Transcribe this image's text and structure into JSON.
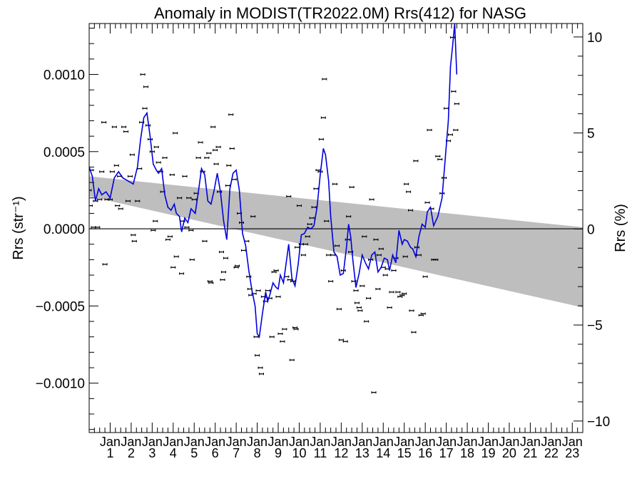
{
  "chart_data": {
    "type": "scatter",
    "title": "Anomaly in MODIST(TR2022.0M) Rrs(412) for NASG",
    "ylabel_left": "Rrs (str⁻¹)",
    "ylabel_right": "Rrs (%)",
    "xlim": [
      0,
      23.5
    ],
    "ylim": [
      -0.00132,
      0.00133
    ],
    "ylim_right": [
      -10.6,
      10.7
    ],
    "y_ticks": [
      {
        "v": 0.001,
        "label": "0.0010"
      },
      {
        "v": 0.0005,
        "label": "0.0005"
      },
      {
        "v": 0.0,
        "label": "0.0000"
      },
      {
        "v": -0.0005,
        "label": "−0.0005"
      },
      {
        "v": -0.001,
        "label": "−0.0010"
      }
    ],
    "y_ticks_right": [
      {
        "v": 10,
        "label": "10"
      },
      {
        "v": 5,
        "label": "5"
      },
      {
        "v": 0,
        "label": "0"
      },
      {
        "v": -5,
        "label": "−5"
      },
      {
        "v": -10,
        "label": "−10"
      }
    ],
    "x_ticks": [
      {
        "x": 1,
        "top": "Jan",
        "bottom": "1"
      },
      {
        "x": 2,
        "top": "Jan",
        "bottom": "2"
      },
      {
        "x": 3,
        "top": "Jan",
        "bottom": "3"
      },
      {
        "x": 4,
        "top": "Jan",
        "bottom": "4"
      },
      {
        "x": 5,
        "top": "Jan",
        "bottom": "5"
      },
      {
        "x": 6,
        "top": "Jan",
        "bottom": "6"
      },
      {
        "x": 7,
        "top": "Jan",
        "bottom": "7"
      },
      {
        "x": 8,
        "top": "Jan",
        "bottom": "8"
      },
      {
        "x": 9,
        "top": "Jan",
        "bottom": "9"
      },
      {
        "x": 10,
        "top": "Jan",
        "bottom": "10"
      },
      {
        "x": 11,
        "top": "Jan",
        "bottom": "11"
      },
      {
        "x": 12,
        "top": "Jan",
        "bottom": "12"
      },
      {
        "x": 13,
        "top": "Jan",
        "bottom": "13"
      },
      {
        "x": 14,
        "top": "Jan",
        "bottom": "14"
      },
      {
        "x": 15,
        "top": "Jan",
        "bottom": "15"
      },
      {
        "x": 16,
        "top": "Jan",
        "bottom": "16"
      },
      {
        "x": 17,
        "top": "Jan",
        "bottom": "17"
      },
      {
        "x": 18,
        "top": "Jan",
        "bottom": "18"
      },
      {
        "x": 19,
        "top": "Jan",
        "bottom": "19"
      },
      {
        "x": 20,
        "top": "Jan",
        "bottom": "20"
      },
      {
        "x": 21,
        "top": "Jan",
        "bottom": "21"
      },
      {
        "x": 22,
        "top": "Jan",
        "bottom": "22"
      },
      {
        "x": 23,
        "top": "Jan",
        "bottom": "23"
      }
    ],
    "uncertainty_band": {
      "color": "#bebebe",
      "upper": [
        [
          0,
          0.00034
        ],
        [
          23.5,
          1e-05
        ]
      ],
      "lower": [
        [
          0,
          0.00021
        ],
        [
          23.5,
          -0.00051
        ]
      ]
    },
    "zero_line": 0,
    "colors": {
      "points": "#000000",
      "smooth_line": "#0000dd",
      "band": "#bebebe"
    },
    "points": [
      [
        0.0,
        0.00025
      ],
      [
        0.05,
        0.00015
      ],
      [
        0.1,
        0.00038
      ],
      [
        0.2,
        1e-05
      ],
      [
        0.3,
        0.00018
      ],
      [
        0.4,
        1e-05
      ],
      [
        0.5,
        0.00019
      ],
      [
        0.6,
        0.00037
      ],
      [
        0.7,
        0.00069
      ],
      [
        0.75,
        -0.00023
      ],
      [
        0.85,
        0.00019
      ],
      [
        1.0,
        0.00019
      ],
      [
        1.1,
        0.00037
      ],
      [
        1.2,
        0.00066
      ],
      [
        1.3,
        0.00041
      ],
      [
        1.35,
        0.00015
      ],
      [
        1.45,
        0.00034
      ],
      [
        1.5,
        0.00013
      ],
      [
        1.65,
        0.00066
      ],
      [
        1.75,
        0.00063
      ],
      [
        1.85,
        0.00018
      ],
      [
        1.95,
        0.00034
      ],
      [
        2.05,
        0.00048
      ],
      [
        2.1,
        -4e-05
      ],
      [
        2.15,
        -8e-05
      ],
      [
        2.3,
        0.00018
      ],
      [
        2.4,
        0.00039
      ],
      [
        2.5,
        0.00069
      ],
      [
        2.55,
        0.001
      ],
      [
        2.65,
        0.00078
      ],
      [
        2.7,
        0.00092
      ],
      [
        2.8,
        0.00067
      ],
      [
        2.9,
        0.00058
      ],
      [
        3.0,
        0.0005
      ],
      [
        3.05,
        -1e-05
      ],
      [
        3.15,
        5e-05
      ],
      [
        3.2,
        0.00053
      ],
      [
        3.3,
        0.00043
      ],
      [
        3.4,
        0.00037
      ],
      [
        3.5,
        0.00024
      ],
      [
        3.6,
        0.00046
      ],
      [
        3.75,
        -7e-05
      ],
      [
        3.85,
        -5e-05
      ],
      [
        3.95,
        0.00035
      ],
      [
        4.0,
        -0.00025
      ],
      [
        4.1,
        0.00062
      ],
      [
        4.15,
        -0.00018
      ],
      [
        4.3,
        0.0002
      ],
      [
        4.4,
        -0.00029
      ],
      [
        4.45,
        5e-05
      ],
      [
        4.55,
        0.00034
      ],
      [
        4.65,
        1e-05
      ],
      [
        4.75,
        0.0002
      ],
      [
        4.85,
        -1e-05
      ],
      [
        4.9,
        -0.0002
      ],
      [
        5.0,
        0.00019
      ],
      [
        5.1,
        0.00023
      ],
      [
        5.2,
        0.00046
      ],
      [
        5.3,
        0.00056
      ],
      [
        5.4,
        0.00037
      ],
      [
        5.5,
        -8e-05
      ],
      [
        5.6,
        0.00046
      ],
      [
        5.7,
        0.00049
      ],
      [
        5.75,
        -0.00034
      ],
      [
        5.8,
        -0.00035
      ],
      [
        5.9,
        0.00066
      ],
      [
        6.0,
        0.00051
      ],
      [
        6.05,
        0.00042
      ],
      [
        6.15,
        0.00053
      ],
      [
        6.2,
        0.00024
      ],
      [
        6.3,
        -0.00015
      ],
      [
        6.35,
        -0.00033
      ],
      [
        6.4,
        -0.00028
      ],
      [
        6.5,
        -0.00019
      ],
      [
        6.6,
        0.00028
      ],
      [
        6.65,
        0.00041
      ],
      [
        6.75,
        0.00074
      ],
      [
        6.8,
        0.00052
      ],
      [
        6.9,
        0.00032
      ],
      [
        7.0,
        -0.00025
      ],
      [
        7.05,
        -0.00024
      ],
      [
        7.15,
        0.0001
      ],
      [
        7.25,
        4e-05
      ],
      [
        7.35,
        -0.00014
      ],
      [
        7.5,
        -8e-05
      ],
      [
        7.6,
        -0.00031
      ],
      [
        7.65,
        -0.00039
      ],
      [
        7.7,
        -0.00043
      ],
      [
        7.8,
        8e-05
      ],
      [
        7.85,
        -0.00042
      ],
      [
        7.95,
        -0.0007
      ],
      [
        8.0,
        -0.00082
      ],
      [
        8.05,
        -0.0004
      ],
      [
        8.15,
        -0.0009
      ],
      [
        8.2,
        -0.00094
      ],
      [
        8.3,
        -0.00044
      ],
      [
        8.4,
        -0.00047
      ],
      [
        8.5,
        -0.0004
      ],
      [
        8.6,
        -0.00045
      ],
      [
        8.7,
        -0.0007
      ],
      [
        8.8,
        -0.00028
      ],
      [
        8.9,
        -0.00027
      ],
      [
        9.0,
        -0.00044
      ],
      [
        9.1,
        -0.00068
      ],
      [
        9.2,
        -0.00073
      ],
      [
        9.3,
        -0.00065
      ],
      [
        9.4,
        -0.00031
      ],
      [
        9.5,
        0.00021
      ],
      [
        9.55,
        -0.00033
      ],
      [
        9.65,
        -0.00085
      ],
      [
        9.7,
        -0.00034
      ],
      [
        9.8,
        -0.00064
      ],
      [
        9.85,
        -0.00065
      ],
      [
        9.9,
        -0.00012
      ],
      [
        10.0,
        0.00015
      ],
      [
        10.1,
        -0.0001
      ],
      [
        10.2,
        -0.00017
      ],
      [
        10.3,
        -0.0001
      ],
      [
        10.4,
        -5e-05
      ],
      [
        10.5,
        3e-05
      ],
      [
        10.6,
        7e-05
      ],
      [
        10.7,
        0.00014
      ],
      [
        10.8,
        0.00026
      ],
      [
        10.9,
        0.00038
      ],
      [
        11.0,
        0.00037
      ],
      [
        11.05,
        0.00058
      ],
      [
        11.15,
        0.00072
      ],
      [
        11.2,
        0.00097
      ],
      [
        11.3,
        5e-05
      ],
      [
        11.4,
        -0.00017
      ],
      [
        11.5,
        -0.00034
      ],
      [
        11.6,
        -0.00017
      ],
      [
        11.7,
        0.00029
      ],
      [
        11.8,
        -0.00011
      ],
      [
        11.9,
        -0.00052
      ],
      [
        12.0,
        -0.00072
      ],
      [
        12.1,
        -0.00027
      ],
      [
        12.2,
        -0.00073
      ],
      [
        12.3,
        -7e-05
      ],
      [
        12.35,
        8e-05
      ],
      [
        12.45,
        -0.00015
      ],
      [
        12.5,
        0.00027
      ],
      [
        12.6,
        -0.00034
      ],
      [
        12.7,
        -0.0004
      ],
      [
        12.75,
        -0.00048
      ],
      [
        12.85,
        -0.00051
      ],
      [
        12.9,
        -0.00053
      ],
      [
        13.0,
        -0.00037
      ],
      [
        13.1,
        -5e-05
      ],
      [
        13.2,
        -0.0006
      ],
      [
        13.3,
        -0.00045
      ],
      [
        13.4,
        -0.0002
      ],
      [
        13.45,
        0.00019
      ],
      [
        13.55,
        -0.00106
      ],
      [
        13.65,
        -7e-05
      ],
      [
        13.75,
        -0.00039
      ],
      [
        13.8,
        -0.00017
      ],
      [
        13.9,
        -0.00013
      ],
      [
        14.0,
        -0.00025
      ],
      [
        14.1,
        -0.0003
      ],
      [
        14.2,
        -0.00026
      ],
      [
        14.3,
        -0.00051
      ],
      [
        14.4,
        -0.00041
      ],
      [
        14.5,
        -0.00027
      ],
      [
        14.6,
        -0.00019
      ],
      [
        14.7,
        -0.00041
      ],
      [
        14.8,
        -0.00044
      ],
      [
        14.9,
        -0.00043
      ],
      [
        15.0,
        -0.00042
      ],
      [
        15.05,
        -0.00018
      ],
      [
        15.1,
        0.00029
      ],
      [
        15.2,
        0.00024
      ],
      [
        15.3,
        0.00012
      ],
      [
        15.35,
        -0.00053
      ],
      [
        15.45,
        -0.00067
      ],
      [
        15.55,
        0.00044
      ],
      [
        15.6,
        -0.00012
      ],
      [
        15.7,
        -0.00017
      ],
      [
        15.8,
        -0.00056
      ],
      [
        15.9,
        -0.00055
      ],
      [
        16.0,
        -0.00031
      ],
      [
        16.1,
        0.00017
      ],
      [
        16.2,
        0.00064
      ],
      [
        16.3,
        0.00013
      ],
      [
        16.4,
        -0.0002
      ],
      [
        16.5,
        -0.0002
      ],
      [
        16.6,
        0.00047
      ],
      [
        16.7,
        0.00045
      ],
      [
        16.8,
        0.00023
      ],
      [
        16.9,
        0.00033
      ],
      [
        17.0,
        0.00078
      ],
      [
        17.1,
        0.00057
      ],
      [
        17.2,
        0.00061
      ],
      [
        17.3,
        0.00124
      ],
      [
        17.35,
        0.00089
      ],
      [
        17.45,
        0.00064
      ],
      [
        17.5,
        0.00081
      ]
    ],
    "smooth_line": [
      [
        0.0,
        0.0004
      ],
      [
        0.15,
        0.00034
      ],
      [
        0.3,
        0.00018
      ],
      [
        0.45,
        0.00026
      ],
      [
        0.6,
        0.00022
      ],
      [
        0.8,
        0.00024
      ],
      [
        1.0,
        0.0002
      ],
      [
        1.2,
        0.00033
      ],
      [
        1.4,
        0.00037
      ],
      [
        1.6,
        0.00033
      ],
      [
        1.85,
        0.00031
      ],
      [
        2.1,
        0.00029
      ],
      [
        2.3,
        0.0004
      ],
      [
        2.45,
        0.00058
      ],
      [
        2.6,
        0.00072
      ],
      [
        2.75,
        0.00075
      ],
      [
        2.9,
        0.0006
      ],
      [
        3.05,
        0.00042
      ],
      [
        3.2,
        0.00038
      ],
      [
        3.3,
        0.00036
      ],
      [
        3.45,
        0.00039
      ],
      [
        3.6,
        0.00022
      ],
      [
        3.75,
        0.00014
      ],
      [
        3.9,
        0.00012
      ],
      [
        4.05,
        0.00016
      ],
      [
        4.15,
        0.0001
      ],
      [
        4.3,
        8e-05
      ],
      [
        4.4,
        -2e-05
      ],
      [
        4.55,
        7e-05
      ],
      [
        4.7,
        4e-05
      ],
      [
        4.85,
        0.00013
      ],
      [
        5.05,
        0.0001
      ],
      [
        5.2,
        0.00024
      ],
      [
        5.35,
        0.00039
      ],
      [
        5.5,
        0.00035
      ],
      [
        5.65,
        0.00018
      ],
      [
        5.8,
        0.00016
      ],
      [
        5.95,
        0.00025
      ],
      [
        6.1,
        0.00036
      ],
      [
        6.25,
        0.00024
      ],
      [
        6.4,
        5e-05
      ],
      [
        6.55,
        -7e-05
      ],
      [
        6.7,
        0.00026
      ],
      [
        6.85,
        0.00036
      ],
      [
        7.0,
        0.00038
      ],
      [
        7.15,
        0.00025
      ],
      [
        7.3,
        -3e-05
      ],
      [
        7.45,
        -0.00011
      ],
      [
        7.6,
        -0.00027
      ],
      [
        7.75,
        -0.0004
      ],
      [
        7.9,
        -0.0005
      ],
      [
        8.0,
        -0.00068
      ],
      [
        8.1,
        -0.0007
      ],
      [
        8.25,
        -0.00055
      ],
      [
        8.4,
        -0.00041
      ],
      [
        8.5,
        -0.00047
      ],
      [
        8.6,
        -0.00043
      ],
      [
        8.75,
        -0.00035
      ],
      [
        8.9,
        -0.00038
      ],
      [
        9.0,
        -0.00039
      ],
      [
        9.1,
        -0.0003
      ],
      [
        9.25,
        -0.00035
      ],
      [
        9.4,
        -0.0002
      ],
      [
        9.5,
        -0.0001
      ],
      [
        9.65,
        -0.00032
      ],
      [
        9.8,
        -0.00037
      ],
      [
        9.95,
        -0.00023
      ],
      [
        10.1,
        -4e-05
      ],
      [
        10.25,
        -3e-05
      ],
      [
        10.4,
        1e-05
      ],
      [
        10.55,
        0.0
      ],
      [
        10.7,
        2e-05
      ],
      [
        10.85,
        0.00014
      ],
      [
        11.0,
        0.00035
      ],
      [
        11.15,
        0.00052
      ],
      [
        11.25,
        0.00048
      ],
      [
        11.4,
        0.00031
      ],
      [
        11.5,
        8e-05
      ],
      [
        11.65,
        -0.00015
      ],
      [
        11.8,
        -0.00018
      ],
      [
        11.95,
        -0.0003
      ],
      [
        12.1,
        -0.00029
      ],
      [
        12.25,
        -0.00012
      ],
      [
        12.35,
        3e-05
      ],
      [
        12.45,
        -5e-05
      ],
      [
        12.55,
        -0.0002
      ],
      [
        12.7,
        -0.00038
      ],
      [
        12.85,
        -0.00029
      ],
      [
        13.0,
        -0.00017
      ],
      [
        13.15,
        -0.00022
      ],
      [
        13.3,
        -0.00026
      ],
      [
        13.45,
        -0.00017
      ],
      [
        13.6,
        -0.00015
      ],
      [
        13.75,
        -0.00028
      ],
      [
        13.9,
        -0.00025
      ],
      [
        14.05,
        -0.00019
      ],
      [
        14.2,
        -0.0002
      ],
      [
        14.3,
        -0.00027
      ],
      [
        14.45,
        -0.00017
      ],
      [
        14.6,
        -0.00022
      ],
      [
        14.75,
        -1e-05
      ],
      [
        14.9,
        -0.0001
      ],
      [
        15.0,
        -7e-05
      ],
      [
        15.15,
        -8e-05
      ],
      [
        15.3,
        -0.00012
      ],
      [
        15.4,
        -0.00013
      ],
      [
        15.55,
        -0.00018
      ],
      [
        15.7,
        -5e-05
      ],
      [
        15.85,
        3e-05
      ],
      [
        16.0,
        1e-05
      ],
      [
        16.1,
        0.00011
      ],
      [
        16.25,
        0.00014
      ],
      [
        16.4,
        2e-05
      ],
      [
        16.6,
        8e-05
      ],
      [
        16.8,
        0.0002
      ],
      [
        16.95,
        0.00045
      ],
      [
        17.1,
        0.0007
      ],
      [
        17.2,
        0.00105
      ],
      [
        17.3,
        0.00118
      ],
      [
        17.4,
        0.00133
      ],
      [
        17.5,
        0.001
      ]
    ]
  }
}
